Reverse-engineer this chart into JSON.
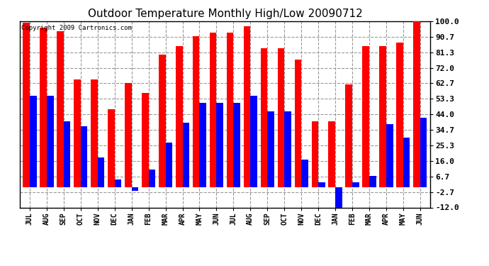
{
  "title": "Outdoor Temperature Monthly High/Low 20090712",
  "copyright": "Copyright 2009 Cartronics.com",
  "months": [
    "JUL",
    "AUG",
    "SEP",
    "OCT",
    "NOV",
    "DEC",
    "JAN",
    "FEB",
    "MAR",
    "APR",
    "MAY",
    "JUN",
    "JUL",
    "AUG",
    "SEP",
    "OCT",
    "NOV",
    "DEC",
    "JAN",
    "FEB",
    "MAR",
    "APR",
    "MAY",
    "JUN"
  ],
  "highs": [
    99,
    96,
    94,
    65,
    65,
    47,
    63,
    57,
    80,
    85,
    91,
    93,
    93,
    97,
    84,
    84,
    77,
    40,
    40,
    62,
    85,
    85,
    87,
    100
  ],
  "lows": [
    55,
    55,
    40,
    37,
    18,
    5,
    -2,
    11,
    27,
    39,
    51,
    51,
    51,
    55,
    46,
    46,
    17,
    3,
    -12,
    3,
    7,
    38,
    30,
    42
  ],
  "high_color": "#ff0000",
  "low_color": "#0000ff",
  "bg_color": "#ffffff",
  "grid_color": "#999999",
  "yticks": [
    100.0,
    90.7,
    81.3,
    72.0,
    62.7,
    53.3,
    44.0,
    34.7,
    25.3,
    16.0,
    6.7,
    -2.7,
    -12.0
  ],
  "ymin": -12.0,
  "ymax": 100.0,
  "bar_width": 0.4
}
